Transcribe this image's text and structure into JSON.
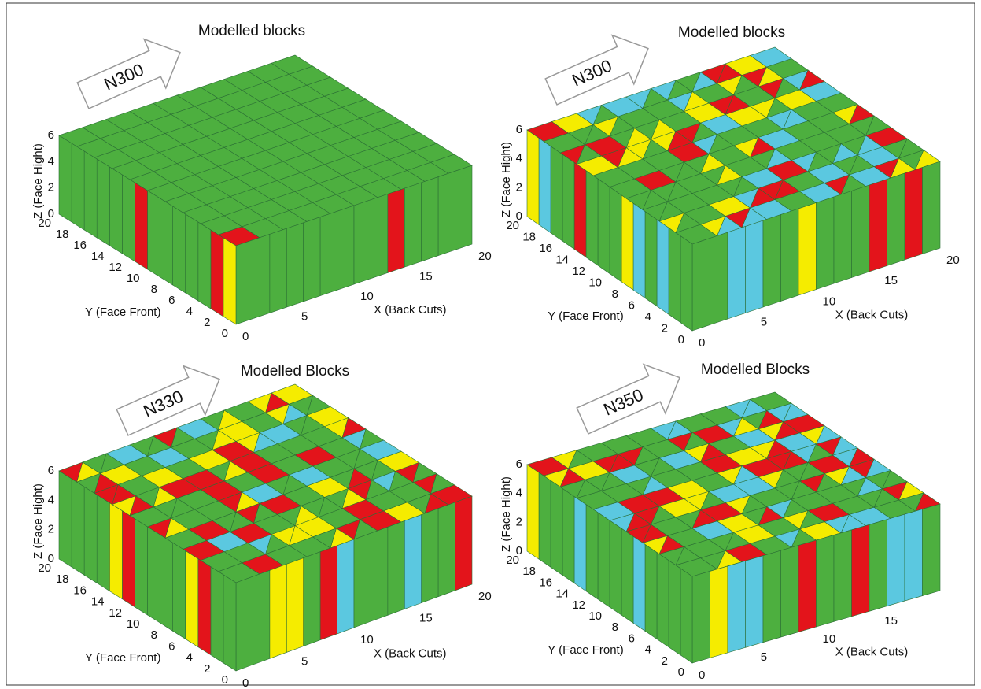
{
  "panels": [
    {
      "title": "Modelled blocks",
      "direction": "N300",
      "z_label": "Z (Face Hight)",
      "y_label": "Y (Face Front)",
      "x_label": "X (Back Cuts)",
      "z_ticks": [
        0,
        2,
        4,
        6
      ],
      "y_ticks": [
        0,
        2,
        4,
        6,
        8,
        10,
        12,
        14,
        16,
        18,
        20
      ],
      "x_ticks": [
        0,
        5,
        10,
        15,
        20
      ]
    },
    {
      "title": "Modelled blocks",
      "direction": "N300",
      "z_label": "Z (Face Hight)",
      "y_label": "Y (Face Front)",
      "x_label": "X (Back Cuts)",
      "z_ticks": [
        0,
        2,
        4,
        6
      ],
      "y_ticks": [
        0,
        2,
        4,
        6,
        8,
        10,
        12,
        14,
        16,
        18,
        20
      ],
      "x_ticks": [
        0,
        5,
        10,
        15,
        20
      ]
    },
    {
      "title": "Modelled Blocks",
      "direction": "N330",
      "z_label": "Z (Face Hight)",
      "y_label": "Y (Face Front)",
      "x_label": "X (Back Cuts)",
      "z_ticks": [
        0,
        2,
        4,
        6
      ],
      "y_ticks": [
        0,
        2,
        4,
        6,
        8,
        10,
        12,
        14,
        16,
        18,
        20
      ],
      "x_ticks": [
        0,
        5,
        10,
        15,
        20
      ]
    },
    {
      "title": "Modelled Blocks",
      "direction": "N350",
      "z_label": "Z (Face Hight)",
      "y_label": "Y (Face Front)",
      "x_label": "X (Back Cuts)",
      "z_ticks": [
        0,
        2,
        4,
        6
      ],
      "y_ticks": [
        0,
        2,
        4,
        6,
        8,
        10,
        12,
        14,
        16,
        18,
        20
      ],
      "x_ticks": [
        0,
        5,
        10,
        15
      ]
    }
  ]
}
